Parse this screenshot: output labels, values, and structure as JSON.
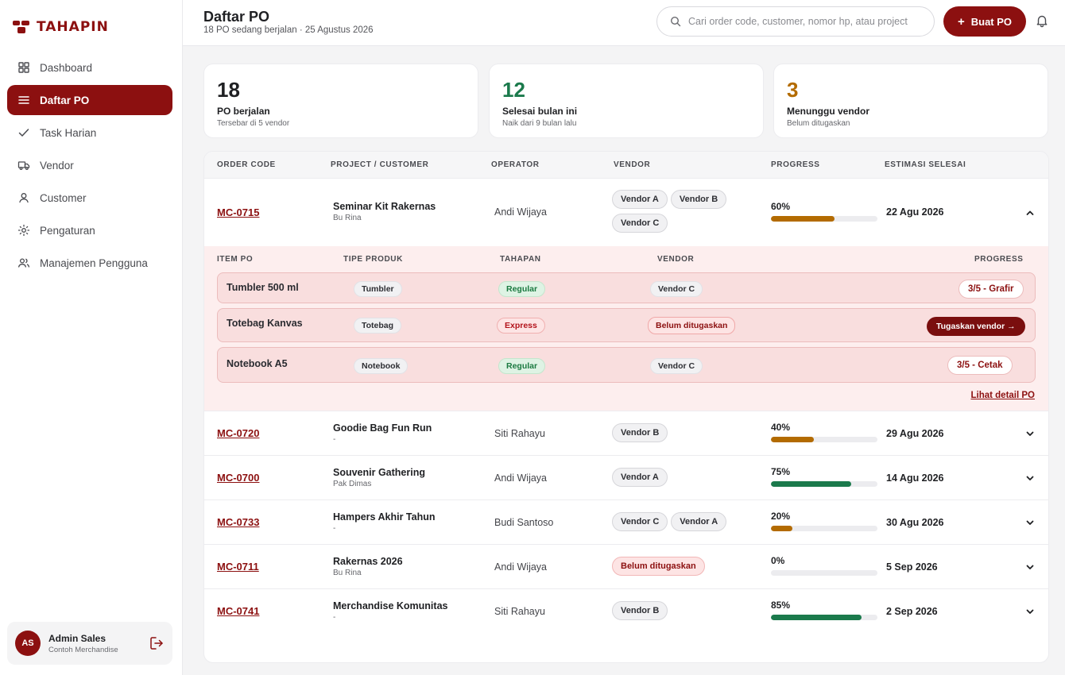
{
  "brand": {
    "name": "TAHAPIN",
    "color": "#8c1010"
  },
  "sidebar": {
    "items": [
      {
        "label": "Dashboard",
        "icon": "grid-icon"
      },
      {
        "label": "Daftar PO",
        "icon": "list-icon",
        "active": true
      },
      {
        "label": "Task Harian",
        "icon": "check-icon"
      },
      {
        "label": "Vendor",
        "icon": "truck-icon"
      },
      {
        "label": "Customer",
        "icon": "user-icon"
      },
      {
        "label": "Pengaturan",
        "icon": "sun-gear-icon"
      },
      {
        "label": "Manajemen Pengguna",
        "icon": "users-icon"
      }
    ],
    "user": {
      "initials": "AS",
      "name": "Admin Sales",
      "company": "Contoh Merchandise"
    }
  },
  "header": {
    "title": "Daftar PO",
    "subtitle": "18 PO sedang berjalan · 25 Agustus 2026",
    "search_placeholder": "Cari order code, customer, nomor hp, atau project",
    "create_label": "Buat PO"
  },
  "stats": [
    {
      "value": "18",
      "label": "PO berjalan",
      "sub": "Tersebar di 5 vendor",
      "color": "#1f2023"
    },
    {
      "value": "12",
      "label": "Selesai bulan ini",
      "sub": "Naik dari 9 bulan lalu",
      "color": "#1b7a4c"
    },
    {
      "value": "3",
      "label": "Menunggu vendor",
      "sub": "Belum ditugaskan",
      "color": "#b36b00"
    }
  ],
  "table": {
    "columns": [
      "ORDER CODE",
      "PROJECT / CUSTOMER",
      "OPERATOR",
      "VENDOR",
      "PROGRESS",
      "ESTIMASI SELESAI"
    ],
    "rows": [
      {
        "code": "MC-0715",
        "project": "Seminar Kit Rakernas",
        "customer": "Bu Rina",
        "operator": "Andi Wijaya",
        "vendors": [
          "Vendor A",
          "Vendor B",
          "Vendor C"
        ],
        "progress": 60,
        "progress_label": "60%",
        "eta": "22 Agu 2026"
      },
      {
        "code": "MC-0720",
        "project": "Goodie Bag Fun Run",
        "customer": "-",
        "operator": "Siti Rahayu",
        "vendors": [
          "Vendor B"
        ],
        "progress": 40,
        "progress_label": "40%",
        "eta": "29 Agu 2026"
      },
      {
        "code": "MC-0700",
        "project": "Souvenir Gathering",
        "customer": "Pak Dimas",
        "operator": "Andi Wijaya",
        "vendors": [
          "Vendor A"
        ],
        "progress": 75,
        "progress_label": "75%",
        "eta": "14 Agu 2026"
      },
      {
        "code": "MC-0733",
        "project": "Hampers Akhir Tahun",
        "customer": "-",
        "operator": "Budi Santoso",
        "vendors": [
          "Vendor C",
          "Vendor A"
        ],
        "progress": 20,
        "progress_label": "20%",
        "eta": "30 Agu 2026"
      },
      {
        "code": "MC-0711",
        "project": "Rakernas 2026",
        "customer": "Bu Rina",
        "operator": "Andi Wijaya",
        "vendors": [
          "Belum ditugaskan"
        ],
        "progress": 0,
        "progress_label": "0%",
        "eta": "5 Sep 2026"
      },
      {
        "code": "MC-0741",
        "project": "Merchandise Komunitas",
        "customer": "-",
        "operator": "Siti Rahayu",
        "vendors": [
          "Vendor B"
        ],
        "progress": 85,
        "progress_label": "85%",
        "eta": "2 Sep 2026"
      }
    ],
    "unassigned_label": "Belum ditugaskan",
    "colors": {
      "progress_warn": "#b36b00",
      "progress_good": "#1b7a4c"
    }
  },
  "expanded": {
    "columns": [
      "ITEM PO",
      "TIPE PRODUK",
      "TAHAPAN",
      "VENDOR",
      "PROGRESS"
    ],
    "items": [
      {
        "name": "Tumbler 500 ml",
        "type": "Tumbler",
        "stage": "Regular",
        "vendor": "Vendor C",
        "progress": "3/5 - Grafir"
      },
      {
        "name": "Totebag Kanvas",
        "type": "Totebag",
        "stage": "Express",
        "vendor": "Belum ditugaskan",
        "action": "Tugaskan vendor →"
      },
      {
        "name": "Notebook A5",
        "type": "Notebook",
        "stage": "Regular",
        "vendor": "Vendor C",
        "progress": "3/5 - Cetak"
      }
    ],
    "detail_link": "Lihat detail PO"
  }
}
